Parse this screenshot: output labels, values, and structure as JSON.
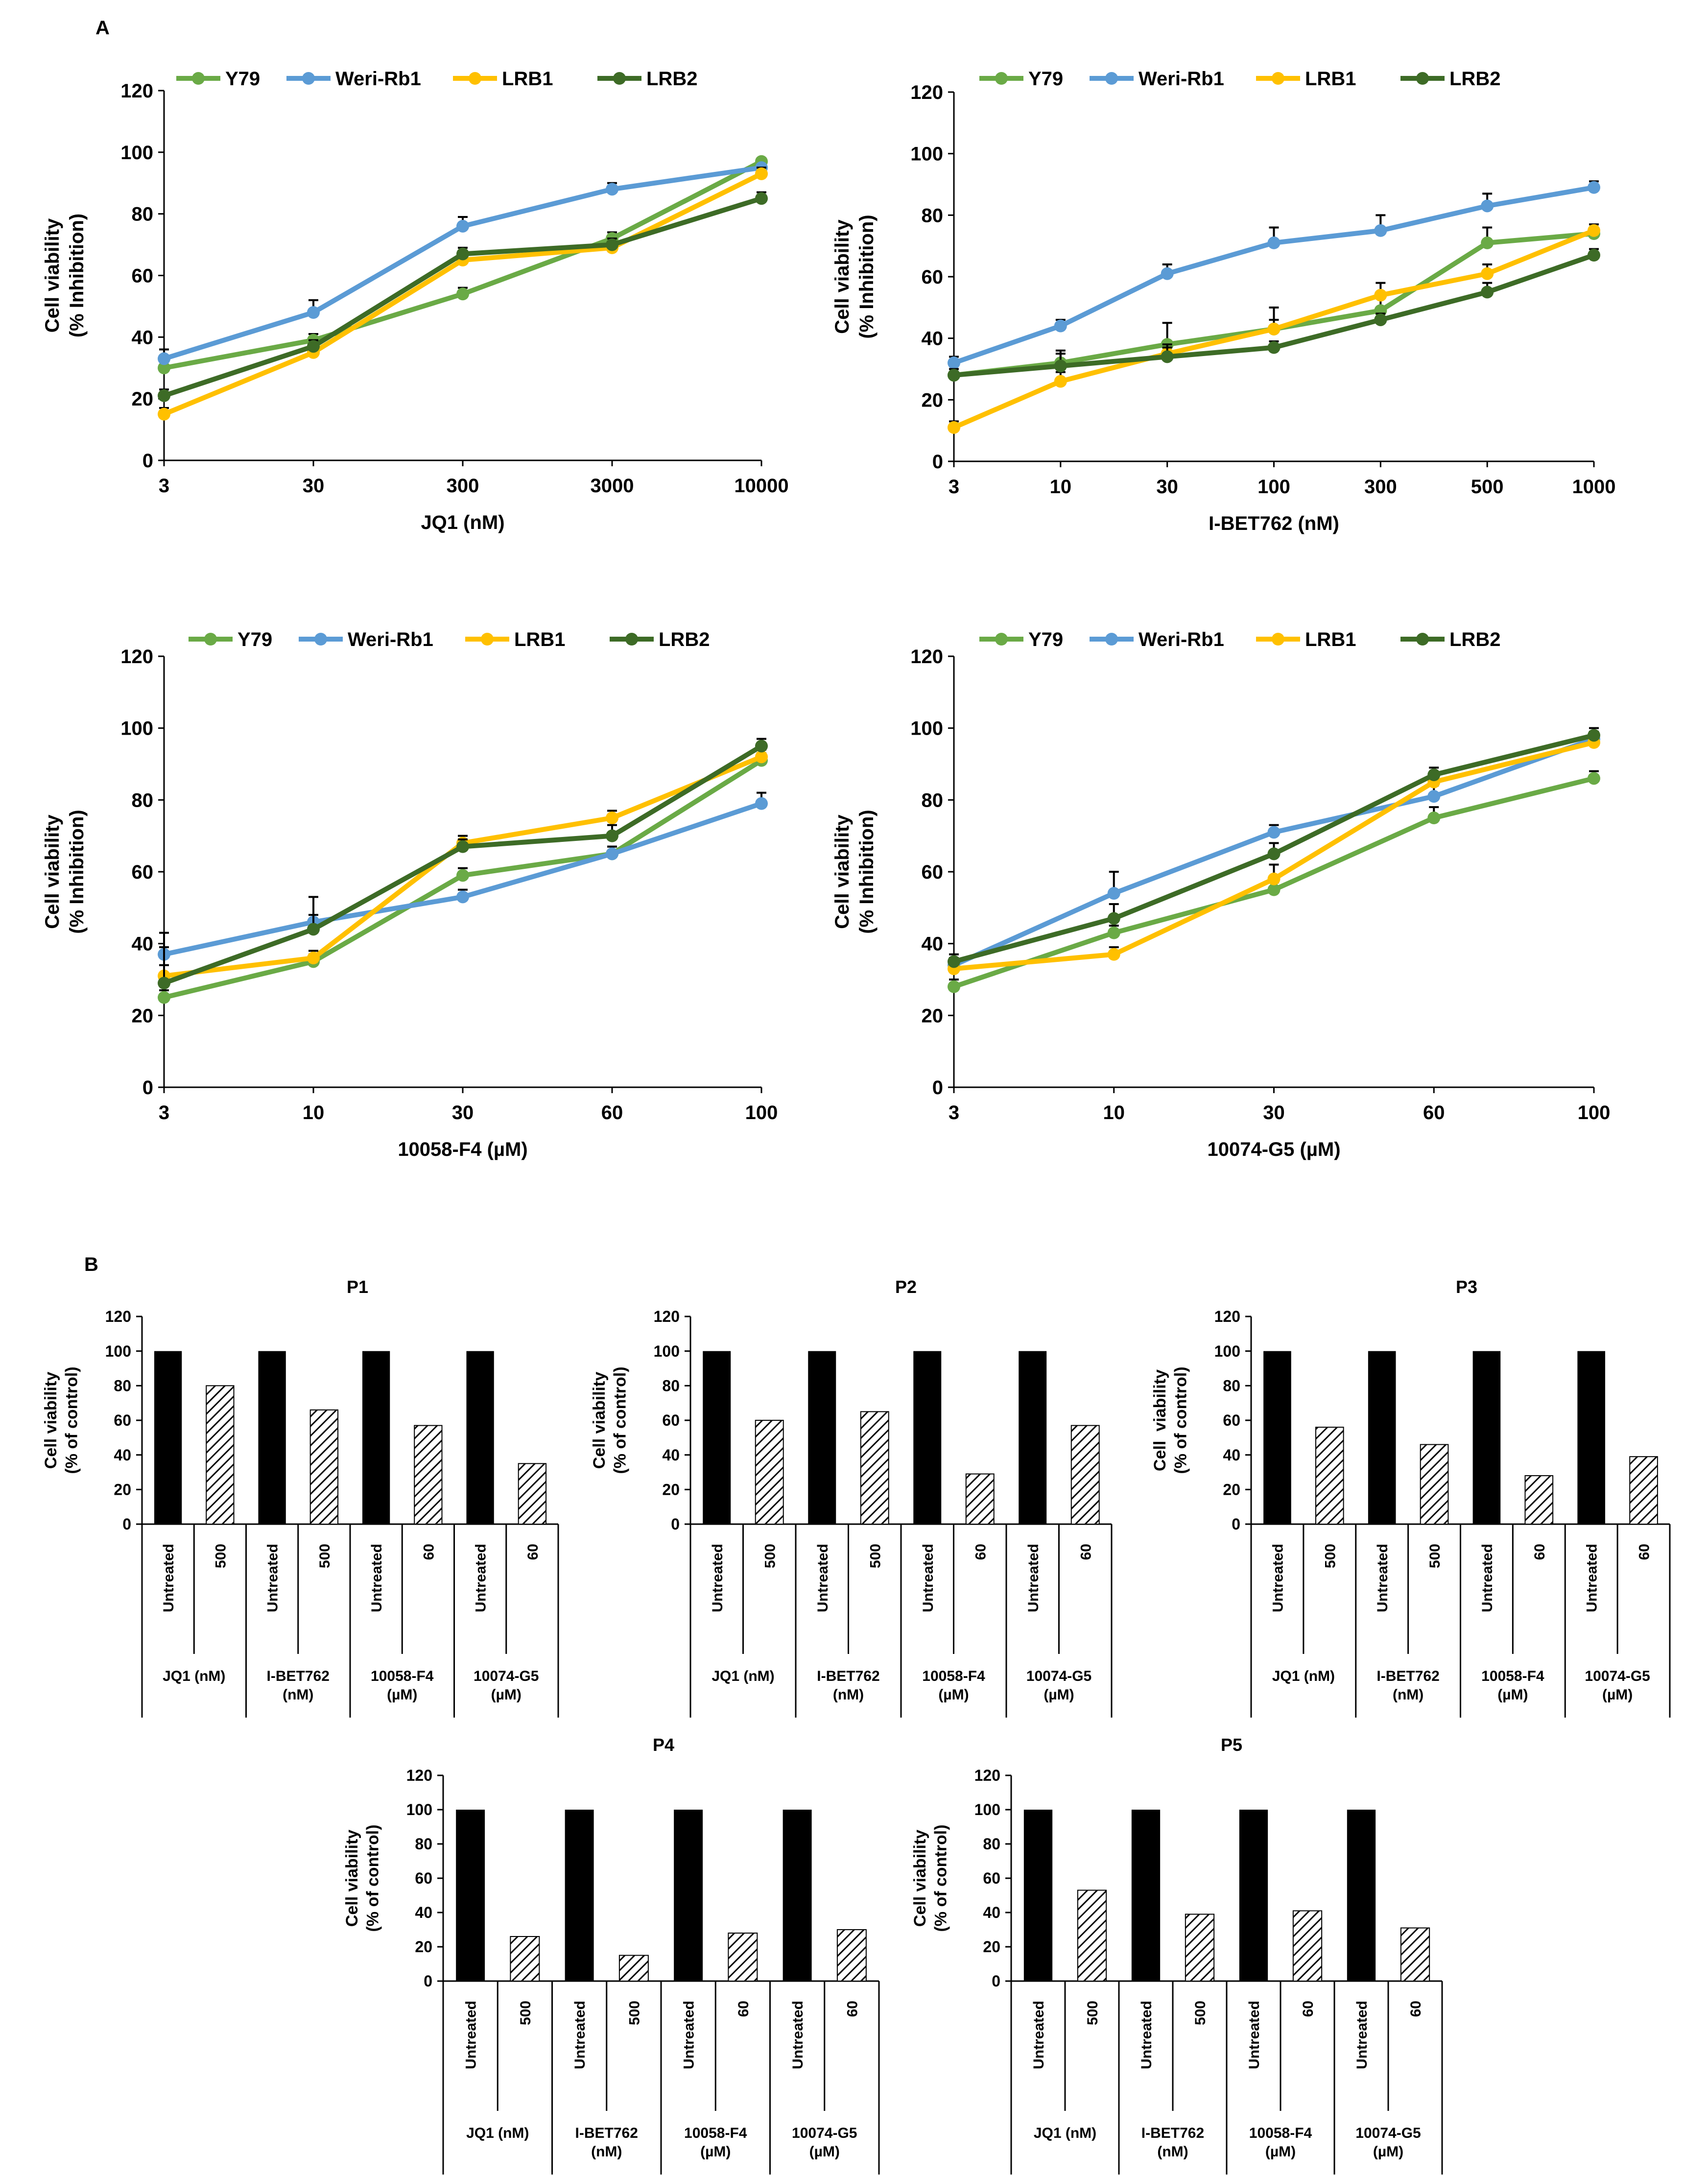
{
  "figure": {
    "panel_a_label": "A",
    "panel_b_label": "B"
  },
  "colors": {
    "Y79": "#6aaa46",
    "Weri-Rb1": "#5b9bd5",
    "LRB1": "#ffc000",
    "LRB2": "#3d6b26",
    "bar_untreated": "#000000",
    "bar_treated_hatch": "#000000"
  },
  "chart_data": [
    {
      "id": "A1",
      "type": "line",
      "title": "",
      "xlabel": "JQ1 (nM)",
      "ylabel": [
        "Cell viability",
        "(% Inhibition)"
      ],
      "ylim": [
        0,
        120
      ],
      "yticks": [
        0,
        20,
        40,
        60,
        80,
        100,
        120
      ],
      "x": [
        "3",
        "30",
        "300",
        "3000",
        "10000"
      ],
      "grid": false,
      "legend": "top",
      "series": [
        {
          "name": "Y79",
          "values": [
            30,
            39,
            54,
            72,
            97
          ],
          "errors": [
            2,
            2,
            2,
            2,
            1
          ]
        },
        {
          "name": "Weri-Rb1",
          "values": [
            33,
            48,
            76,
            88,
            95
          ],
          "errors": [
            3,
            4,
            3,
            2,
            1
          ]
        },
        {
          "name": "LRB1",
          "values": [
            15,
            35,
            65,
            69,
            93
          ],
          "errors": [
            2,
            2,
            2,
            2,
            2
          ]
        },
        {
          "name": "LRB2",
          "values": [
            21,
            37,
            67,
            70,
            85
          ],
          "errors": [
            2,
            2,
            2,
            2,
            2
          ]
        }
      ]
    },
    {
      "id": "A2",
      "type": "line",
      "title": "",
      "xlabel": "I-BET762 (nM)",
      "ylabel": [
        "Cell viability",
        "(% Inhibition)"
      ],
      "ylim": [
        0,
        120
      ],
      "yticks": [
        0,
        20,
        40,
        60,
        80,
        100,
        120
      ],
      "x": [
        "3",
        "10",
        "30",
        "100",
        "300",
        "500",
        "1000"
      ],
      "grid": false,
      "legend": "top",
      "series": [
        {
          "name": "Y79",
          "values": [
            28,
            32,
            38,
            43,
            49,
            71,
            74
          ],
          "errors": [
            2,
            3,
            7,
            7,
            4,
            5,
            2
          ]
        },
        {
          "name": "Weri-Rb1",
          "values": [
            32,
            44,
            61,
            71,
            75,
            83,
            89
          ],
          "errors": [
            2,
            2,
            3,
            5,
            5,
            4,
            2
          ]
        },
        {
          "name": "LRB1",
          "values": [
            11,
            26,
            35,
            43,
            54,
            61,
            75
          ],
          "errors": [
            2,
            3,
            3,
            3,
            4,
            3,
            2
          ]
        },
        {
          "name": "LRB2",
          "values": [
            28,
            31,
            34,
            37,
            46,
            55,
            67
          ],
          "errors": [
            2,
            5,
            3,
            2,
            2,
            3,
            2
          ]
        }
      ]
    },
    {
      "id": "A3",
      "type": "line",
      "title": "",
      "xlabel": "10058-F4 (µM)",
      "ylabel": [
        "Cell viability",
        "(% Inhibition)"
      ],
      "ylim": [
        0,
        120
      ],
      "yticks": [
        0,
        20,
        40,
        60,
        80,
        100,
        120
      ],
      "x": [
        "3",
        "10",
        "30",
        "60",
        "100"
      ],
      "grid": false,
      "legend": "top",
      "series": [
        {
          "name": "Y79",
          "values": [
            25,
            35,
            59,
            65,
            91
          ],
          "errors": [
            2,
            2,
            2,
            2,
            2
          ]
        },
        {
          "name": "Weri-Rb1",
          "values": [
            37,
            46,
            53,
            65,
            79
          ],
          "errors": [
            2,
            2,
            2,
            2,
            3
          ]
        },
        {
          "name": "LRB1",
          "values": [
            31,
            36,
            68,
            75,
            92
          ],
          "errors": [
            3,
            2,
            2,
            2,
            2
          ]
        },
        {
          "name": "LRB2",
          "values": [
            29,
            44,
            67,
            70,
            95
          ],
          "errors": [
            14,
            9,
            2,
            3,
            2
          ]
        }
      ]
    },
    {
      "id": "A4",
      "type": "line",
      "title": "",
      "xlabel": "10074-G5 (µM)",
      "ylabel": [
        "Cell viability",
        "(% Inhibition)"
      ],
      "ylim": [
        0,
        120
      ],
      "yticks": [
        0,
        20,
        40,
        60,
        80,
        100,
        120
      ],
      "x": [
        "3",
        "10",
        "30",
        "60",
        "100"
      ],
      "grid": false,
      "legend": "top",
      "series": [
        {
          "name": "Y79",
          "values": [
            28,
            43,
            55,
            75,
            86
          ],
          "errors": [
            2,
            2,
            2,
            3,
            2
          ]
        },
        {
          "name": "Weri-Rb1",
          "values": [
            34,
            54,
            71,
            81,
            97
          ],
          "errors": [
            2,
            6,
            2,
            3,
            2
          ]
        },
        {
          "name": "LRB1",
          "values": [
            33,
            37,
            58,
            85,
            96
          ],
          "errors": [
            2,
            2,
            4,
            2,
            2
          ]
        },
        {
          "name": "LRB2",
          "values": [
            35,
            47,
            65,
            87,
            98
          ],
          "errors": [
            2,
            4,
            3,
            2,
            2
          ]
        }
      ]
    },
    {
      "id": "P1",
      "type": "bar",
      "title": "P1",
      "ylabel": [
        "Cell viability",
        "(% of control)"
      ],
      "ylim": [
        0,
        120
      ],
      "yticks": [
        0,
        20,
        40,
        60,
        80,
        100,
        120
      ],
      "categories": [
        "Untreated",
        "500",
        "Untreated",
        "500",
        "Untreated",
        "60",
        "Untreated",
        "60"
      ],
      "groups": [
        [
          "JQ1 (nM)"
        ],
        [
          "I-BET762",
          "(nM)"
        ],
        [
          "10058-F4",
          "(µM)"
        ],
        [
          "10074-G5",
          "(µM)"
        ]
      ],
      "values": [
        100,
        80,
        100,
        66,
        100,
        57,
        100,
        35
      ]
    },
    {
      "id": "P2",
      "type": "bar",
      "title": "P2",
      "ylabel": [
        "Cell viability",
        "(% of control)"
      ],
      "ylim": [
        0,
        120
      ],
      "yticks": [
        0,
        20,
        40,
        60,
        80,
        100,
        120
      ],
      "categories": [
        "Untreated",
        "500",
        "Untreated",
        "500",
        "Untreated",
        "60",
        "Untreated",
        "60"
      ],
      "groups": [
        [
          "JQ1 (nM)"
        ],
        [
          "I-BET762",
          "(nM)"
        ],
        [
          "10058-F4",
          "(µM)"
        ],
        [
          "10074-G5",
          "(µM)"
        ]
      ],
      "values": [
        100,
        60,
        100,
        65,
        100,
        29,
        100,
        57
      ]
    },
    {
      "id": "P3",
      "type": "bar",
      "title": "P3",
      "ylabel": [
        "Cell  viability",
        "(% of control)"
      ],
      "ylim": [
        0,
        120
      ],
      "yticks": [
        0,
        20,
        40,
        60,
        80,
        100,
        120
      ],
      "categories": [
        "Untreated",
        "500",
        "Untreated",
        "500",
        "Untreated",
        "60",
        "Untreated",
        "60"
      ],
      "groups": [
        [
          "JQ1 (nM)"
        ],
        [
          "I-BET762",
          "(nM)"
        ],
        [
          "10058-F4",
          "(µM)"
        ],
        [
          "10074-G5",
          "(µM)"
        ]
      ],
      "values": [
        100,
        56,
        100,
        46,
        100,
        28,
        100,
        39
      ]
    },
    {
      "id": "P4",
      "type": "bar",
      "title": "P4",
      "ylabel": [
        "Cell viability",
        "(% of control)"
      ],
      "ylim": [
        0,
        120
      ],
      "yticks": [
        0,
        20,
        40,
        60,
        80,
        100,
        120
      ],
      "categories": [
        "Untreated",
        "500",
        "Untreated",
        "500",
        "Untreated",
        "60",
        "Untreated",
        "60"
      ],
      "groups": [
        [
          "JQ1 (nM)"
        ],
        [
          "I-BET762",
          "(nM)"
        ],
        [
          "10058-F4",
          "(µM)"
        ],
        [
          "10074-G5",
          "(µM)"
        ]
      ],
      "values": [
        100,
        26,
        100,
        15,
        100,
        28,
        100,
        30
      ]
    },
    {
      "id": "P5",
      "type": "bar",
      "title": "P5",
      "ylabel": [
        "Cell viability",
        "(% of control)"
      ],
      "ylim": [
        0,
        120
      ],
      "yticks": [
        0,
        20,
        40,
        60,
        80,
        100,
        120
      ],
      "categories": [
        "Untreated",
        "500",
        "Untreated",
        "500",
        "Untreated",
        "60",
        "Untreated",
        "60"
      ],
      "groups": [
        [
          "JQ1 (nM)"
        ],
        [
          "I-BET762",
          "(nM)"
        ],
        [
          "10058-F4",
          "(µM)"
        ],
        [
          "10074-G5",
          "(µM)"
        ]
      ],
      "values": [
        100,
        53,
        100,
        39,
        100,
        41,
        100,
        31
      ]
    }
  ]
}
